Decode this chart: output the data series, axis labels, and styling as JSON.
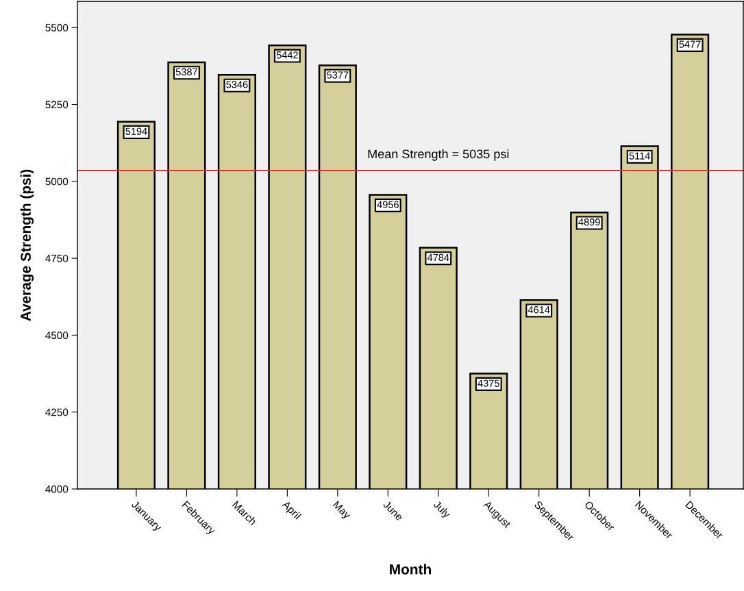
{
  "chart_data": {
    "type": "bar",
    "xlabel": "Month",
    "ylabel": "Average Strength (psi)",
    "categories": [
      "January",
      "February",
      "March",
      "April",
      "May",
      "June",
      "July",
      "August",
      "September",
      "October",
      "November",
      "December"
    ],
    "values": [
      5194,
      5387,
      5346,
      5442,
      5377,
      4956,
      4784,
      4375,
      4614,
      4899,
      5114,
      5477
    ],
    "color": "#d4cf9b",
    "ylim": [
      4000,
      5585
    ],
    "yticks": [
      4000,
      4250,
      4500,
      4750,
      5000,
      5250,
      5500
    ],
    "data_labels": true,
    "grid": false,
    "ref_lines": [
      {
        "axis": "y",
        "value": 5035,
        "label": "Mean Strength = 5035 psi",
        "color": "#e03030"
      }
    ]
  }
}
